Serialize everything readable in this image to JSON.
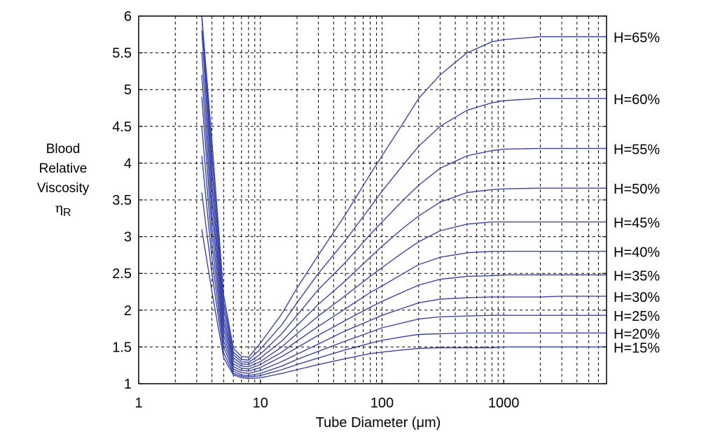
{
  "chart_data": {
    "type": "line",
    "xscale": "log",
    "xlim": [
      1,
      7000
    ],
    "ylim": [
      1,
      6
    ],
    "grid": true,
    "xlabel": "Tube Diameter (μm)",
    "ylabel": [
      "Blood",
      "Relative",
      "Viscosity"
    ],
    "ylabel_symbol": "η",
    "ylabel_symbol_sub": "R",
    "xticks": [
      1,
      10,
      100,
      1000
    ],
    "xtick_labels": [
      "1",
      "10",
      "100",
      "1000"
    ],
    "yticks": [
      1,
      1.5,
      2,
      2.5,
      3,
      3.5,
      4,
      4.5,
      5,
      5.5,
      6
    ],
    "ytick_labels": [
      "1",
      "1.5",
      "2",
      "2.5",
      "3",
      "3.5",
      "4",
      "4.5",
      "5",
      "5.5",
      "6"
    ],
    "line_color": "#3b45a8",
    "x": [
      3.3,
      4,
      5,
      6,
      7,
      8,
      10,
      15,
      20,
      30,
      50,
      80,
      100,
      150,
      200,
      300,
      500,
      800,
      1000,
      2000,
      3000,
      7000
    ],
    "series": [
      {
        "name": "H=65%",
        "values": [
          6,
          4.3,
          2.2,
          1.48,
          1.37,
          1.36,
          1.55,
          1.95,
          2.3,
          2.75,
          3.3,
          3.85,
          4.1,
          4.55,
          4.88,
          5.2,
          5.5,
          5.65,
          5.68,
          5.72,
          5.72,
          5.72
        ]
      },
      {
        "name": "H=60%",
        "values": [
          6,
          4.1,
          2.1,
          1.43,
          1.33,
          1.32,
          1.47,
          1.8,
          2.1,
          2.5,
          2.95,
          3.4,
          3.62,
          3.98,
          4.23,
          4.5,
          4.72,
          4.82,
          4.85,
          4.88,
          4.88,
          4.88
        ]
      },
      {
        "name": "H=55%",
        "values": [
          6,
          3.9,
          2.0,
          1.39,
          1.3,
          1.29,
          1.4,
          1.68,
          1.93,
          2.28,
          2.65,
          3.03,
          3.2,
          3.5,
          3.7,
          3.93,
          4.1,
          4.17,
          4.19,
          4.2,
          4.2,
          4.2
        ]
      },
      {
        "name": "H=50%",
        "values": [
          5.8,
          3.7,
          1.9,
          1.35,
          1.27,
          1.26,
          1.35,
          1.58,
          1.79,
          2.08,
          2.4,
          2.72,
          2.87,
          3.12,
          3.28,
          3.47,
          3.6,
          3.64,
          3.65,
          3.66,
          3.66,
          3.66
        ]
      },
      {
        "name": "H=45%",
        "values": [
          5.5,
          3.5,
          1.82,
          1.31,
          1.24,
          1.23,
          1.3,
          1.5,
          1.68,
          1.92,
          2.2,
          2.46,
          2.58,
          2.79,
          2.93,
          3.08,
          3.17,
          3.2,
          3.2,
          3.2,
          3.2,
          3.2
        ]
      },
      {
        "name": "H=40%",
        "values": [
          5.2,
          3.3,
          1.74,
          1.27,
          1.21,
          1.2,
          1.26,
          1.43,
          1.58,
          1.78,
          2.02,
          2.24,
          2.33,
          2.5,
          2.62,
          2.72,
          2.78,
          2.8,
          2.8,
          2.8,
          2.8,
          2.8
        ]
      },
      {
        "name": "H=35%",
        "values": [
          4.9,
          3.1,
          1.66,
          1.23,
          1.18,
          1.17,
          1.22,
          1.37,
          1.49,
          1.66,
          1.86,
          2.04,
          2.12,
          2.25,
          2.34,
          2.42,
          2.46,
          2.47,
          2.48,
          2.48,
          2.48,
          2.48
        ]
      },
      {
        "name": "H=30%",
        "values": [
          4.5,
          2.9,
          1.58,
          1.2,
          1.15,
          1.14,
          1.18,
          1.3,
          1.4,
          1.54,
          1.72,
          1.86,
          1.93,
          2.03,
          2.1,
          2.15,
          2.17,
          2.18,
          2.18,
          2.18,
          2.19,
          2.19
        ]
      },
      {
        "name": "H=25%",
        "values": [
          4.1,
          2.7,
          1.5,
          1.17,
          1.12,
          1.11,
          1.14,
          1.24,
          1.33,
          1.44,
          1.58,
          1.7,
          1.76,
          1.83,
          1.88,
          1.91,
          1.92,
          1.93,
          1.93,
          1.93,
          1.93,
          1.93
        ]
      },
      {
        "name": "H=20%",
        "values": [
          3.6,
          2.5,
          1.42,
          1.14,
          1.1,
          1.09,
          1.11,
          1.19,
          1.26,
          1.35,
          1.46,
          1.55,
          1.59,
          1.64,
          1.67,
          1.68,
          1.69,
          1.69,
          1.69,
          1.69,
          1.69,
          1.69
        ]
      },
      {
        "name": "H=15%",
        "values": [
          3.1,
          2.25,
          1.35,
          1.12,
          1.08,
          1.07,
          1.08,
          1.14,
          1.19,
          1.26,
          1.34,
          1.41,
          1.43,
          1.46,
          1.48,
          1.49,
          1.49,
          1.49,
          1.5,
          1.5,
          1.5,
          1.5
        ]
      }
    ]
  }
}
